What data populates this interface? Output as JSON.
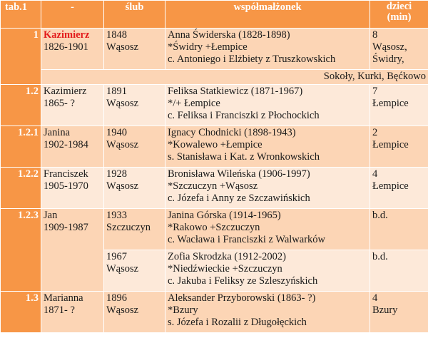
{
  "header": {
    "col_id": "tab.1",
    "col_name": "-",
    "col_slub": "ślub",
    "col_spouse": "współmałżonek",
    "col_children_1": "dzieci",
    "col_children_2": "(min)"
  },
  "rows": [
    {
      "id": "1",
      "name": "Kazimierz",
      "dates": "1826-1901",
      "slub_year": "1848",
      "slub_place": "Wąsosz",
      "spouse": "Anna Świderska (1828-1898)",
      "spouse_places": "*Świdry +Łempice",
      "parents": "c. Antoniego i Elżbiety z Truszkowskich",
      "children_count": "8",
      "children_places": "Wąsosz,",
      "children_places_2": "Świdry,",
      "children_places_full": "Sokoły, Kurki, Bęćkowo"
    },
    {
      "id": "1.2",
      "name": "Kazimierz",
      "dates": "1865- ?",
      "slub_year": "1891",
      "slub_place": "Wąsosz",
      "spouse": "Feliksa Statkiewicz (1871-1967)",
      "spouse_places": "*/+ Łempice",
      "parents": "c. Feliksa i Franciszki z Płochockich",
      "children_count": "7",
      "children_places": "Łempice"
    },
    {
      "id": "1.2.1",
      "name": "Janina",
      "dates": "1902-1984",
      "slub_year": "1940",
      "slub_place": "Wąsosz",
      "spouse": "Ignacy Chodnicki (1898-1943)",
      "spouse_places": "*Kowalewo +Łempice",
      "parents": "s. Stanisława i Kat.  z Wronkowskich",
      "children_count": "2",
      "children_places": "Łempice"
    },
    {
      "id": "1.2.2",
      "name": "Franciszek",
      "dates": "1905-1970",
      "slub_year": "1928",
      "slub_place": "Wąsosz",
      "spouse": "Bronisława Wileńska (1906-1997)",
      "spouse_places": "*Szczuczyn +Wąsosz",
      "parents": "c. Józefa i Anny ze Szczawińskich",
      "children_count": "4",
      "children_places": "Łempice"
    },
    {
      "id": "1.2.3",
      "name": "Jan",
      "dates": "1909-1987",
      "marriages": [
        {
          "slub_year": "1933",
          "slub_place": "Szczuczyn",
          "spouse": "Janina Górska (1914-1965)",
          "spouse_places": "*Rakowo +Szczuczyn",
          "parents": "c. Wacława i Franciszki z Walwarków",
          "children_count": "b.d."
        },
        {
          "slub_year": "1967",
          "slub_place": "Wąsosz",
          "spouse": "Zofia Skrodzka (1912-2002)",
          "spouse_places": "*Niedźwieckie +Szczuczyn",
          "parents": "c. Jakuba i Feliksy ze Szleszyńskich",
          "children_count": "b.d."
        }
      ]
    },
    {
      "id": "1.3",
      "name": "Marianna",
      "dates": "1871- ?",
      "slub_year": "1896",
      "slub_place": "Wąsosz",
      "spouse": "Aleksander Przyborowski (1863- ?)",
      "spouse_places": "*Bzury",
      "parents": "s. Józefa i Rozalii z Długołęckich",
      "children_count": "4",
      "children_places": "Bzury"
    }
  ],
  "colors": {
    "header": "#f79646",
    "row_dark": "#fcd5b5",
    "row_light": "#fde9d9",
    "highlight_name": "#e31b1b"
  }
}
